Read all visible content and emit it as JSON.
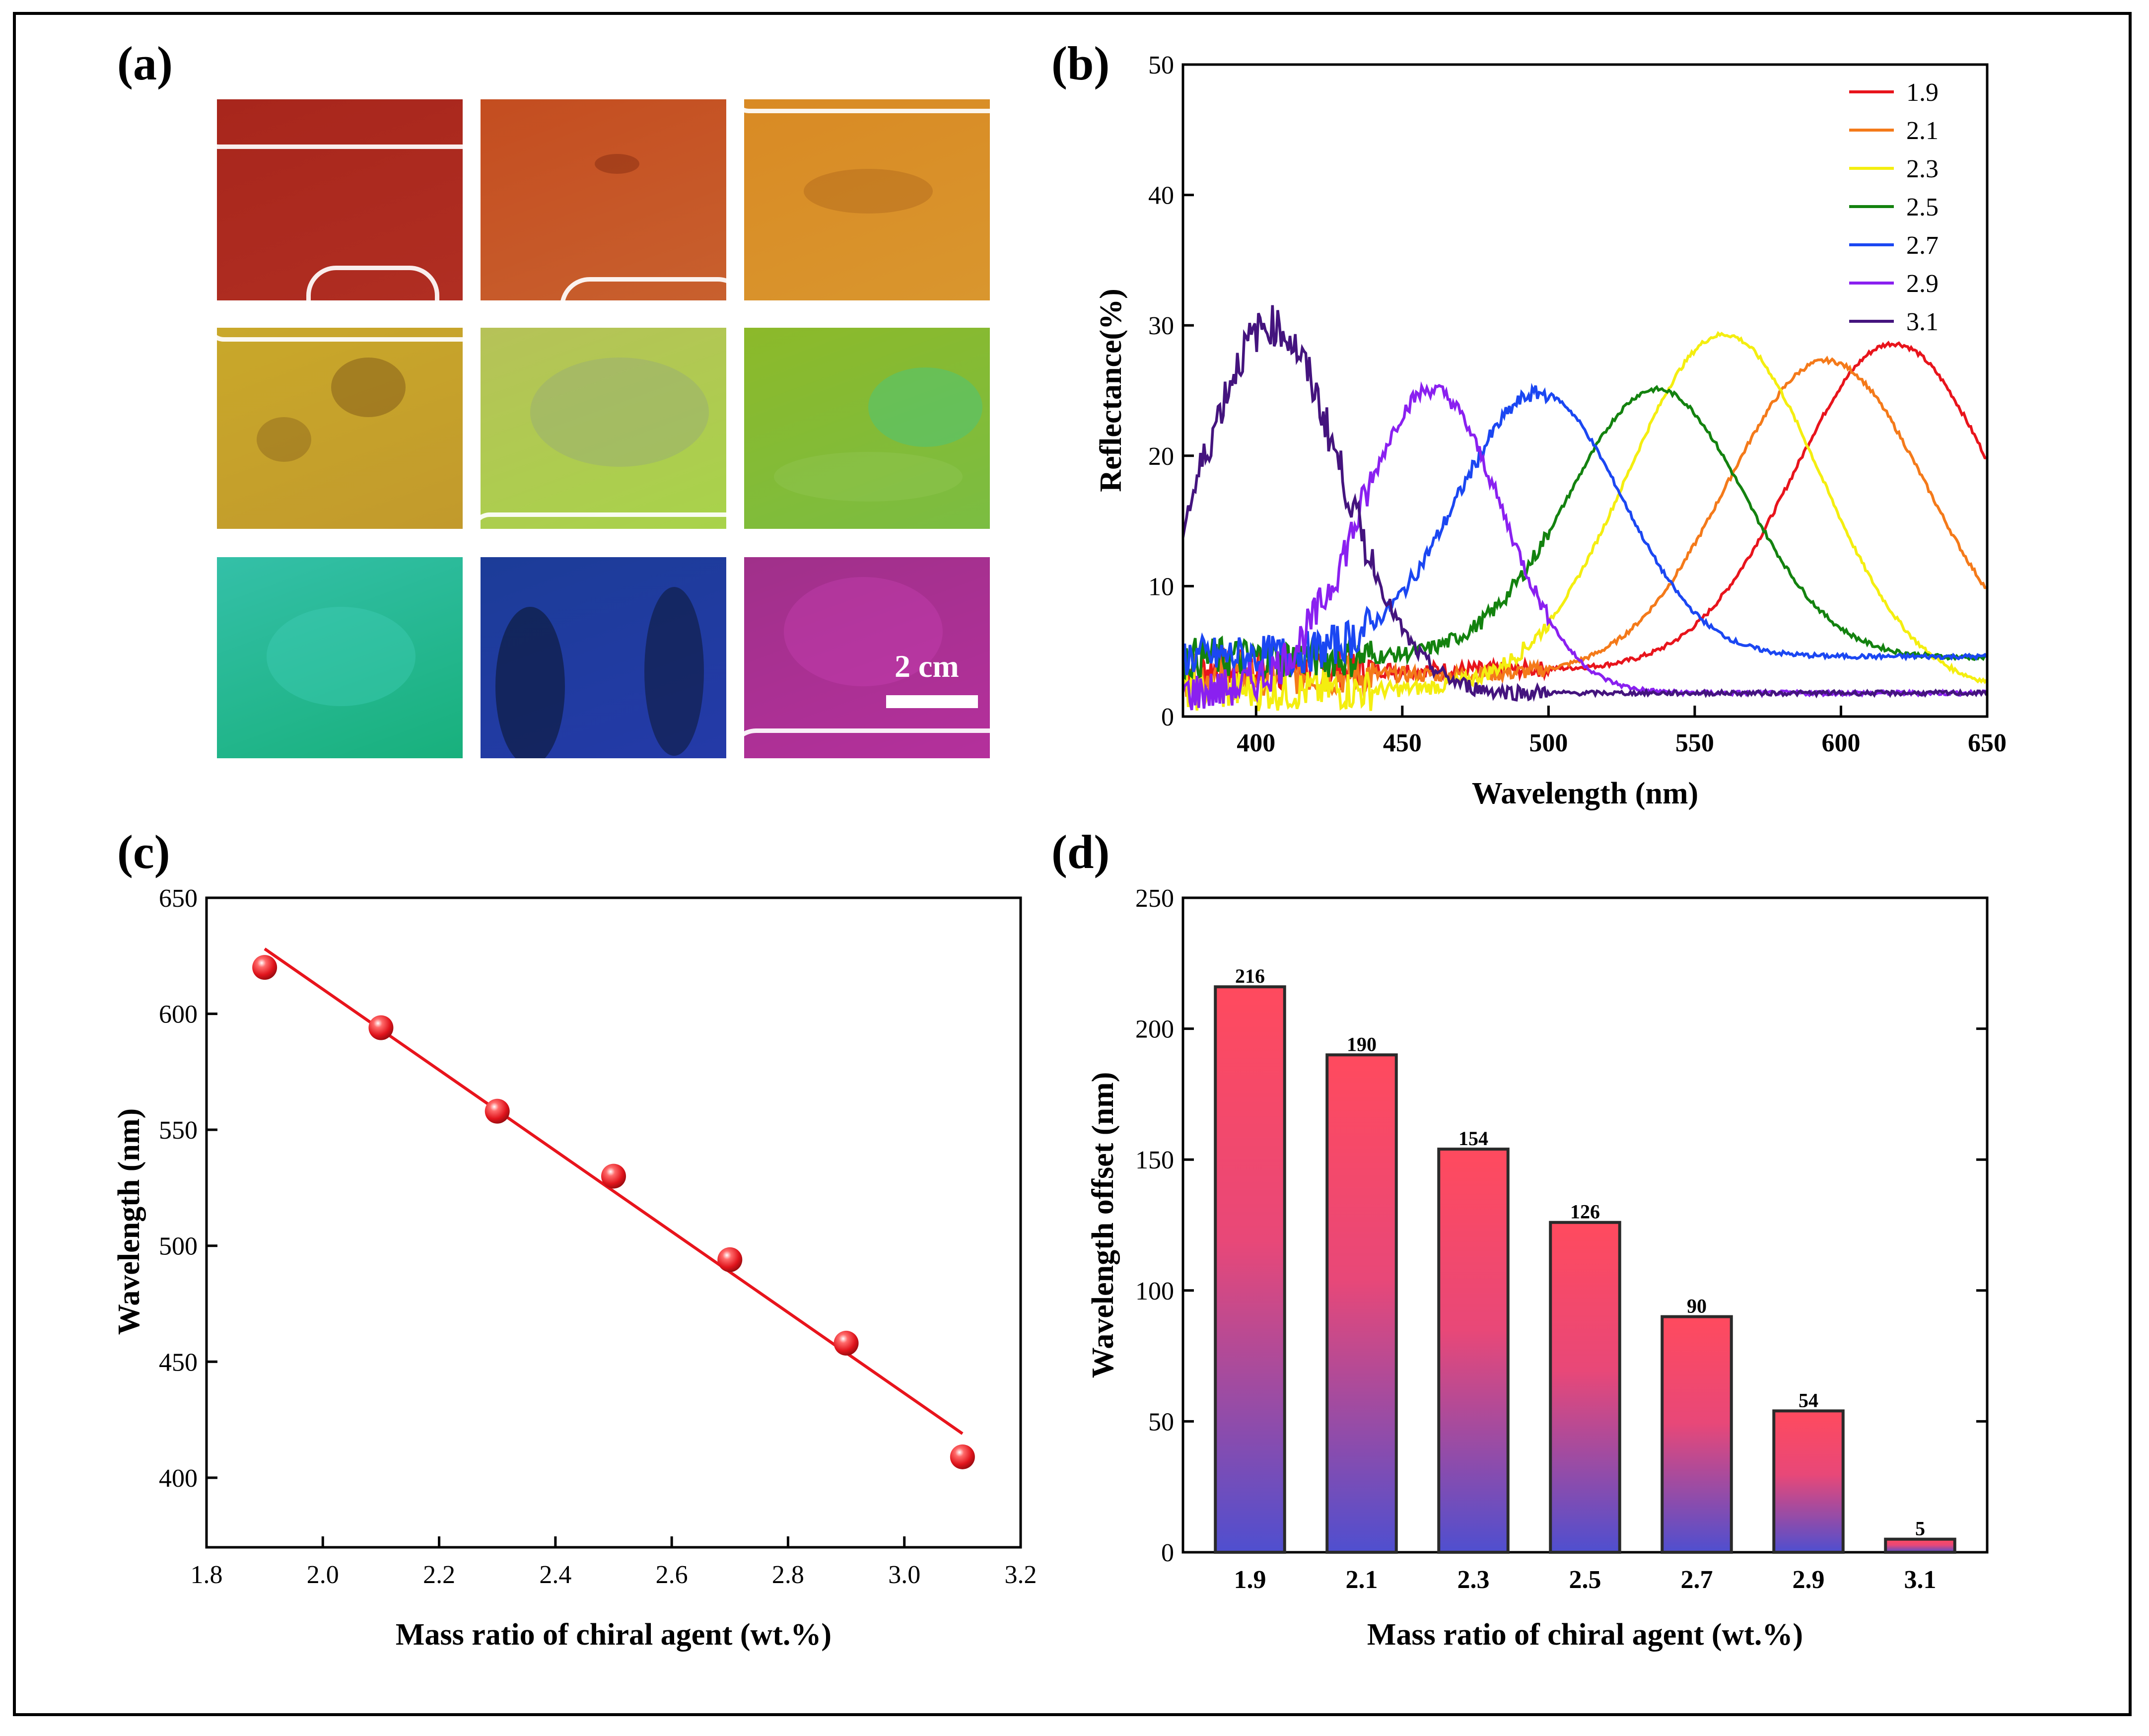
{
  "panel_labels": {
    "a": "(a)",
    "b": "(b)",
    "c": "(c)",
    "d": "(d)"
  },
  "scale_bar": {
    "label": "2 cm"
  },
  "photos": [
    {
      "color_top": "#a8261c",
      "color_bottom": "#b02e22"
    },
    {
      "color_top": "#c44d20",
      "color_bottom": "#c8602e"
    },
    {
      "color_top": "#d98a24",
      "color_bottom": "#d9962e"
    },
    {
      "color_top": "#c9a82a",
      "color_bottom": "#c29a2c"
    },
    {
      "color_top": "#b6c258",
      "color_bottom": "#a8d34a"
    },
    {
      "color_top": "#8cb92a",
      "color_bottom": "#7bbd42"
    },
    {
      "color_top": "#34c0a8",
      "color_bottom": "#18b07c"
    },
    {
      "color_top": "#1c3c98",
      "color_bottom": "#243aa8"
    },
    {
      "color_top": "#a0308a",
      "color_bottom": "#b4309c"
    }
  ],
  "chart_data": [
    {
      "id": "b",
      "type": "line",
      "xlabel": "Wavelength (nm)",
      "ylabel": "Reflectance(%)",
      "xlim": [
        375,
        650
      ],
      "ylim": [
        0,
        50
      ],
      "xticks": [
        "400",
        "450",
        "500",
        "550",
        "600",
        "650"
      ],
      "yticks": [
        "0",
        "10",
        "20",
        "30",
        "40",
        "50"
      ],
      "legend_position": "top-right",
      "series": [
        {
          "name": "1.9",
          "color": "#e8141c",
          "peak": 618,
          "amp": 28.6,
          "width": 34,
          "base": 3.6
        },
        {
          "name": "2.1",
          "color": "#f47a1a",
          "peak": 595,
          "amp": 27.3,
          "width": 34,
          "base": 3.2
        },
        {
          "name": "2.3",
          "color": "#f4ee10",
          "peak": 560,
          "amp": 29.3,
          "width": 33,
          "base": 2.0
        },
        {
          "name": "2.5",
          "color": "#13820f",
          "peak": 537,
          "amp": 25.1,
          "width": 30,
          "base": 4.5
        },
        {
          "name": "2.7",
          "color": "#1b47f2",
          "peak": 497,
          "amp": 24.8,
          "width": 28,
          "base": 4.6
        },
        {
          "name": "2.9",
          "color": "#8a20f0",
          "peak": 460,
          "amp": 25.1,
          "width": 24,
          "base": 1.8
        },
        {
          "name": "3.1",
          "color": "#44147e",
          "peak": 405,
          "amp": 30.0,
          "width": 24,
          "base": 1.8
        }
      ]
    },
    {
      "id": "c",
      "type": "scatter",
      "xlabel": "Mass ratio of chiral agent (wt.%)",
      "ylabel": "Wavelength (nm)",
      "xlim": [
        1.8,
        3.2
      ],
      "ylim": [
        370,
        650
      ],
      "xticks": [
        "1.8",
        "2.0",
        "2.2",
        "2.4",
        "2.6",
        "2.8",
        "3.0",
        "3.2"
      ],
      "yticks": [
        "400",
        "450",
        "500",
        "550",
        "600",
        "650"
      ],
      "x": [
        1.9,
        2.1,
        2.3,
        2.5,
        2.7,
        2.9,
        3.1
      ],
      "y": [
        620,
        594,
        558,
        530,
        494,
        458,
        409
      ],
      "fit": {
        "x": [
          1.9,
          3.1
        ],
        "y": [
          628,
          419
        ]
      },
      "color": "#e8141c"
    },
    {
      "id": "d",
      "type": "bar",
      "xlabel": "Mass ratio of chiral agent (wt.%)",
      "ylabel": "Wavelength offset (nm)",
      "ylim": [
        0,
        250
      ],
      "yticks": [
        "0",
        "50",
        "100",
        "150",
        "200",
        "250"
      ],
      "categories": [
        "1.9",
        "2.1",
        "2.3",
        "2.5",
        "2.7",
        "2.9",
        "3.1"
      ],
      "values": [
        216,
        190,
        154,
        126,
        90,
        54,
        5
      ],
      "data_labels": [
        "216",
        "190",
        "154",
        "126",
        "90",
        "54",
        "5"
      ],
      "gradient_top": "#ff4a5e",
      "gradient_bottom": "#4f4fcf"
    }
  ]
}
